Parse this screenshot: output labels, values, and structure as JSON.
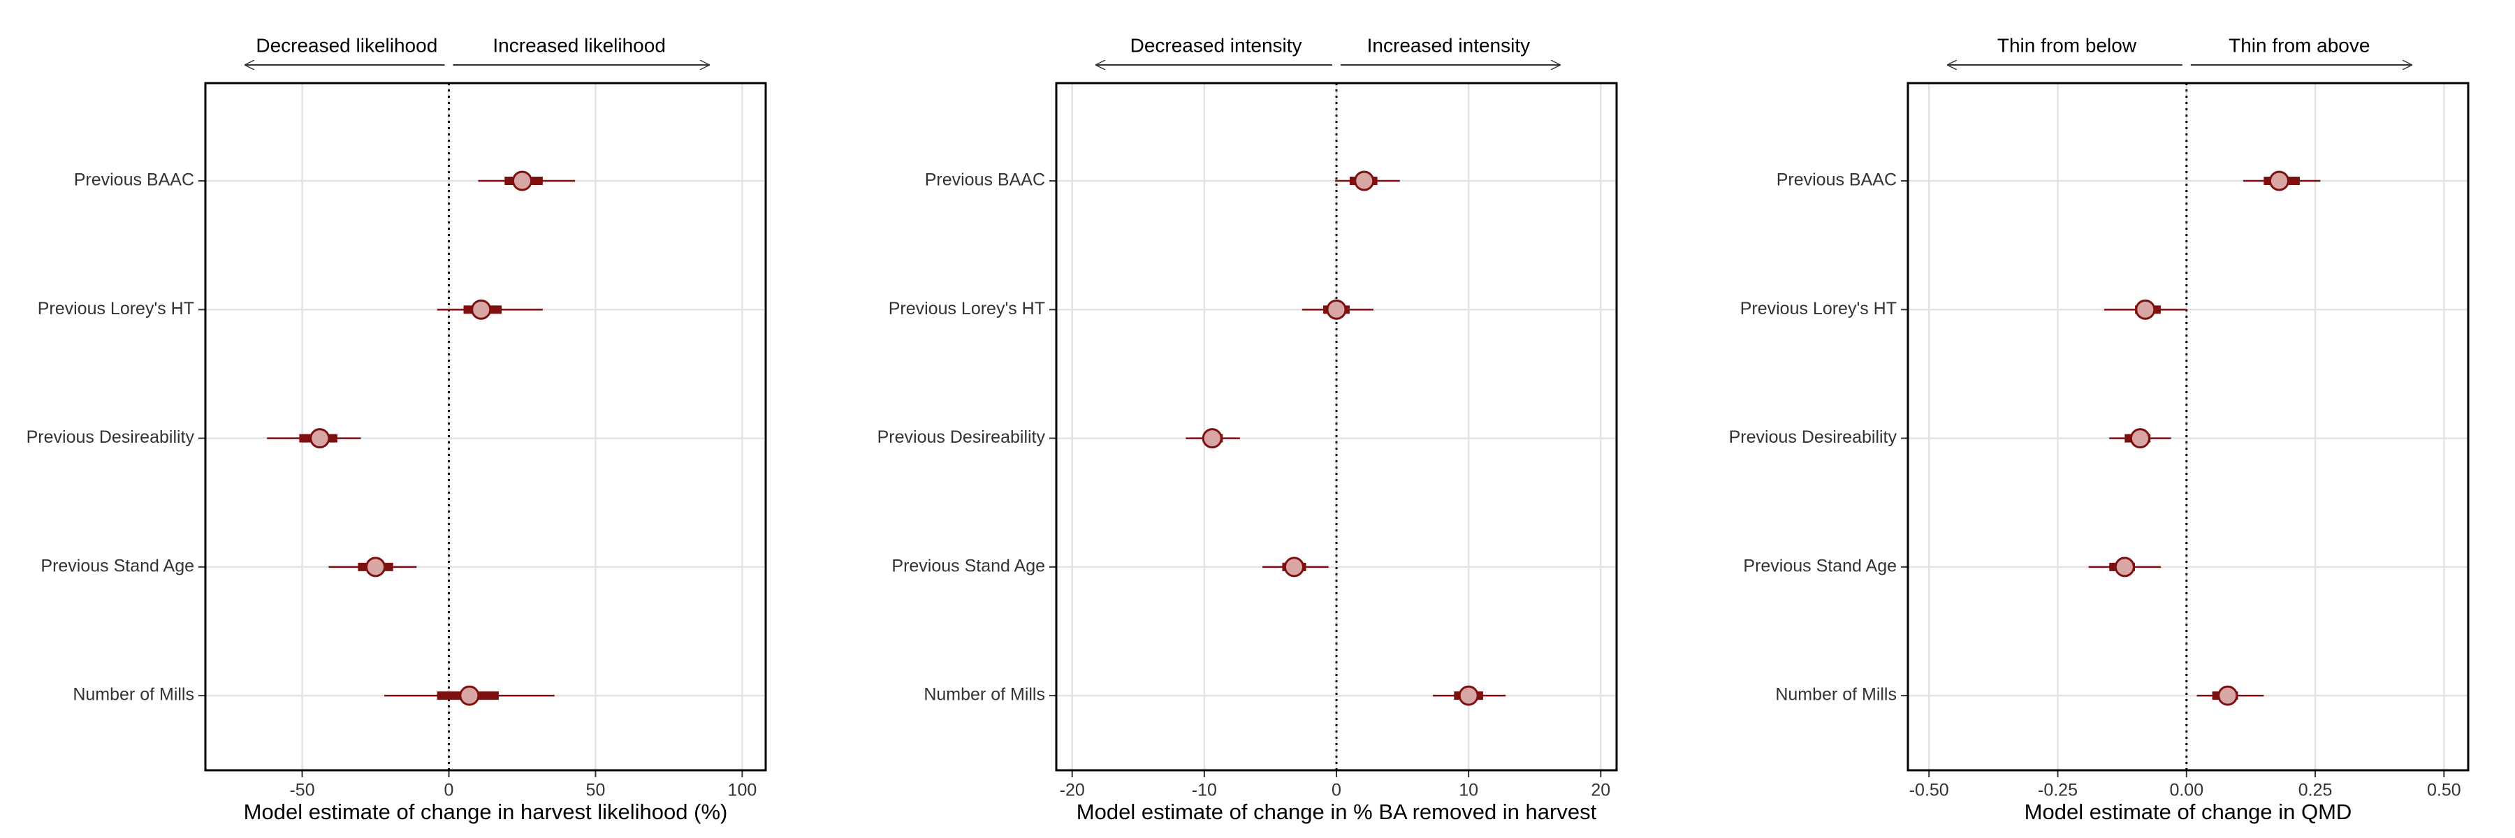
{
  "chart_data": [
    {
      "type": "forest",
      "xlabel": "Model estimate of change in harvest likelihood (%)",
      "left_label": "Decreased likelihood",
      "right_label": "Increased likelihood",
      "categories": [
        "Previous BAAC",
        "Previous Lorey's HT",
        "Previous Desireability",
        "Previous Stand Age",
        "Number of Mills"
      ],
      "values": [
        25,
        11,
        -44,
        -25,
        7
      ],
      "lower_inner": [
        19,
        5,
        -51,
        -31,
        -4
      ],
      "upper_inner": [
        32,
        18,
        -38,
        -19,
        17
      ],
      "lower_outer": [
        10,
        -4,
        -62,
        -41,
        -22
      ],
      "upper_outer": [
        43,
        32,
        -30,
        -11,
        36
      ],
      "xlim": [
        -83,
        108
      ],
      "xticks": [
        -50,
        0,
        50,
        100
      ],
      "reference_line": 0,
      "color": "#7f1010",
      "point_fill": "#d9a6a6",
      "grid": true
    },
    {
      "type": "forest",
      "xlabel": "Model estimate of change in % BA removed in harvest",
      "left_label": "Decreased intensity",
      "right_label": "Increased intensity",
      "categories": [
        "Previous BAAC",
        "Previous Lorey's HT",
        "Previous Desireability",
        "Previous Stand Age",
        "Number of Mills"
      ],
      "values": [
        2.1,
        0,
        -9.4,
        -3.2,
        10
      ],
      "lower_inner": [
        1,
        -1,
        -10.1,
        -4.1,
        8.9
      ],
      "upper_inner": [
        3.1,
        1,
        -8.6,
        -2.3,
        11.1
      ],
      "lower_outer": [
        -0.1,
        -2.6,
        -11.4,
        -5.6,
        7.3
      ],
      "upper_outer": [
        4.8,
        2.8,
        -7.3,
        -0.6,
        12.8
      ],
      "xlim": [
        -21.2,
        21.2
      ],
      "xticks": [
        -20,
        -10,
        0,
        10,
        20
      ],
      "reference_line": 0,
      "color": "#7f1010",
      "point_fill": "#d9a6a6",
      "grid": true
    },
    {
      "type": "forest",
      "xlabel": "Model estimate of change in QMD",
      "left_label": "Thin from below",
      "right_label": "Thin from above",
      "categories": [
        "Previous BAAC",
        "Previous Lorey's HT",
        "Previous Desireability",
        "Previous Stand Age",
        "Number of Mills"
      ],
      "values": [
        0.18,
        -0.08,
        -0.09,
        -0.12,
        0.08
      ],
      "lower_inner": [
        0.15,
        -0.1,
        -0.12,
        -0.15,
        0.05
      ],
      "upper_inner": [
        0.22,
        -0.05,
        -0.07,
        -0.1,
        0.1
      ],
      "lower_outer": [
        0.11,
        -0.16,
        -0.15,
        -0.19,
        0.02
      ],
      "upper_outer": [
        0.26,
        0,
        -0.03,
        -0.05,
        0.15
      ],
      "xlim": [
        -0.541,
        0.547
      ],
      "xticks": [
        {
          "value": -0.5,
          "label": "-0.50"
        },
        -0.25,
        {
          "value": 0,
          "label": "0.00"
        },
        0.25,
        {
          "value": 0.5,
          "label": "0.50"
        }
      ],
      "reference_line": 0,
      "color": "#7f1010",
      "point_fill": "#d9a6a6",
      "grid": true
    }
  ]
}
